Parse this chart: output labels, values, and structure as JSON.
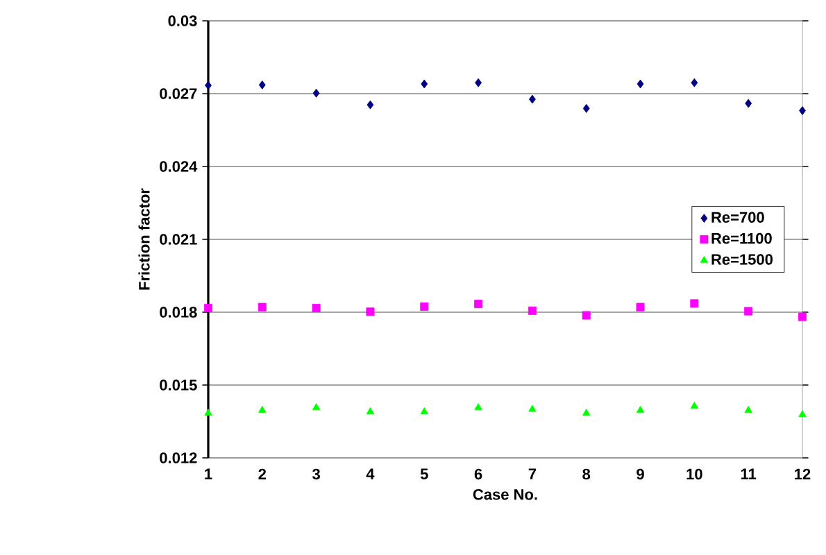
{
  "chart_data": {
    "type": "scatter",
    "xlabel": "Case No.",
    "ylabel": "Friction factor",
    "x": [
      1,
      2,
      3,
      4,
      5,
      6,
      7,
      8,
      9,
      10,
      11,
      12
    ],
    "series": [
      {
        "name": "Re=700",
        "color": "#000080",
        "marker": "diamond",
        "values": [
          0.02734,
          0.02736,
          0.02702,
          0.02654,
          0.0274,
          0.02745,
          0.02677,
          0.02639,
          0.0274,
          0.02745,
          0.0266,
          0.0263
        ]
      },
      {
        "name": "Re=1100",
        "color": "#ff00ff",
        "marker": "square",
        "values": [
          0.01817,
          0.01821,
          0.01817,
          0.01802,
          0.01823,
          0.01834,
          0.01806,
          0.01787,
          0.01821,
          0.01836,
          0.01804,
          0.01781
        ]
      },
      {
        "name": "Re=1500",
        "color": "#00ff00",
        "marker": "triangle",
        "values": [
          0.01384,
          0.01396,
          0.01407,
          0.0139,
          0.0139,
          0.01407,
          0.014,
          0.01384,
          0.01396,
          0.01413,
          0.01396,
          0.01378
        ]
      }
    ],
    "xlim": [
      1,
      12
    ],
    "xticks": [
      1,
      2,
      3,
      4,
      5,
      6,
      7,
      8,
      9,
      10,
      11,
      12
    ],
    "ylim": [
      0.012,
      0.03
    ],
    "yticks": [
      0.012,
      0.015,
      0.018,
      0.021,
      0.024,
      0.027,
      0.03
    ],
    "grid": "y",
    "legend": "right"
  }
}
